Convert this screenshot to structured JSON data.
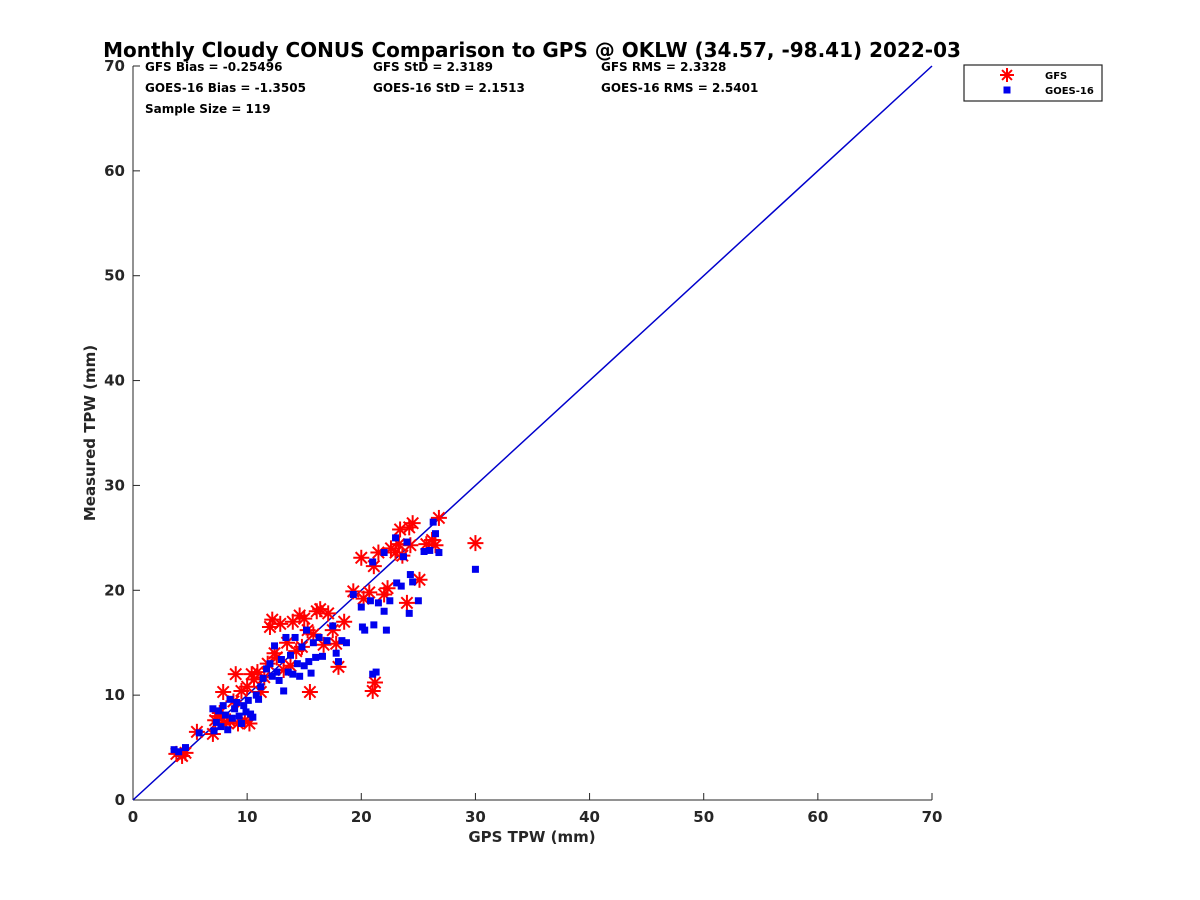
{
  "chart_data": {
    "type": "scatter",
    "title": "Monthly Cloudy CONUS Comparison to GPS @ OKLW (34.57, -98.41) 2022-03",
    "xlabel": "GPS TPW (mm)",
    "ylabel": "Measured TPW (mm)",
    "xlim": [
      0,
      70
    ],
    "ylim": [
      0,
      70
    ],
    "xticks": [
      0,
      10,
      20,
      30,
      40,
      50,
      60,
      70
    ],
    "yticks": [
      0,
      10,
      20,
      30,
      40,
      50,
      60,
      70
    ],
    "grid": false,
    "legend_position": "top-right outside",
    "reference_line": {
      "x": [
        0,
        70
      ],
      "y": [
        0,
        70
      ],
      "color": "#0000cc"
    },
    "stats": {
      "gfs_bias": "GFS Bias = -0.25496",
      "gfs_std": "GFS StD = 2.3189",
      "gfs_rms": "GFS RMS = 2.3328",
      "goes_bias": "GOES-16 Bias = -1.3505",
      "goes_std": "GOES-16 StD = 2.1513",
      "goes_rms": "GOES-16 RMS = 2.5401",
      "sample_size": "Sample Size = 119"
    },
    "series": [
      {
        "name": "GFS",
        "marker": "asterisk",
        "color": "#ff0000",
        "points": [
          [
            3.8,
            4.4
          ],
          [
            4.3,
            4.2
          ],
          [
            4.6,
            4.5
          ],
          [
            5.6,
            6.5
          ],
          [
            7.0,
            6.3
          ],
          [
            7.2,
            7.6
          ],
          [
            7.4,
            8.0
          ],
          [
            7.6,
            8.3
          ],
          [
            7.9,
            10.3
          ],
          [
            8.2,
            7.4
          ],
          [
            8.5,
            7.5
          ],
          [
            8.8,
            9.4
          ],
          [
            9.0,
            12.0
          ],
          [
            9.2,
            7.3
          ],
          [
            9.5,
            10.4
          ],
          [
            9.8,
            7.6
          ],
          [
            10.0,
            10.8
          ],
          [
            10.2,
            7.3
          ],
          [
            10.4,
            12.0
          ],
          [
            10.6,
            11.5
          ],
          [
            10.9,
            12.2
          ],
          [
            11.2,
            10.3
          ],
          [
            11.5,
            11.7
          ],
          [
            11.8,
            13.0
          ],
          [
            12.0,
            16.5
          ],
          [
            12.2,
            17.2
          ],
          [
            12.4,
            14.0
          ],
          [
            12.6,
            13.6
          ],
          [
            12.9,
            16.8
          ],
          [
            13.2,
            12.4
          ],
          [
            13.5,
            15.0
          ],
          [
            13.8,
            12.8
          ],
          [
            14.0,
            17.0
          ],
          [
            14.3,
            14.2
          ],
          [
            14.6,
            17.6
          ],
          [
            14.8,
            14.6
          ],
          [
            15.0,
            17.3
          ],
          [
            15.3,
            16.2
          ],
          [
            15.5,
            10.3
          ],
          [
            15.8,
            15.8
          ],
          [
            16.1,
            18.0
          ],
          [
            16.4,
            18.2
          ],
          [
            16.7,
            14.8
          ],
          [
            17.1,
            17.8
          ],
          [
            17.5,
            16.2
          ],
          [
            17.8,
            14.9
          ],
          [
            18.0,
            12.7
          ],
          [
            18.5,
            17.0
          ],
          [
            19.3,
            19.9
          ],
          [
            20.0,
            23.1
          ],
          [
            20.2,
            19.2
          ],
          [
            20.7,
            19.8
          ],
          [
            21.0,
            10.4
          ],
          [
            21.1,
            22.3
          ],
          [
            21.2,
            11.2
          ],
          [
            21.5,
            23.6
          ],
          [
            22.0,
            19.6
          ],
          [
            22.3,
            20.2
          ],
          [
            22.6,
            24.0
          ],
          [
            23.0,
            23.6
          ],
          [
            23.3,
            24.4
          ],
          [
            23.4,
            25.8
          ],
          [
            23.6,
            23.3
          ],
          [
            24.0,
            18.8
          ],
          [
            24.2,
            26.0
          ],
          [
            24.3,
            24.3
          ],
          [
            24.5,
            26.4
          ],
          [
            25.1,
            21.0
          ],
          [
            25.7,
            24.4
          ],
          [
            26.2,
            24.8
          ],
          [
            26.5,
            24.3
          ],
          [
            26.8,
            26.9
          ],
          [
            30.0,
            24.5
          ]
        ]
      },
      {
        "name": "GOES-16",
        "marker": "square",
        "color": "#0000ee",
        "points": [
          [
            3.6,
            4.8
          ],
          [
            4.0,
            4.6
          ],
          [
            4.6,
            5.0
          ],
          [
            5.8,
            6.4
          ],
          [
            7.0,
            8.7
          ],
          [
            7.1,
            6.6
          ],
          [
            7.3,
            7.4
          ],
          [
            7.5,
            8.5
          ],
          [
            7.7,
            7.0
          ],
          [
            7.9,
            9.0
          ],
          [
            8.1,
            8.1
          ],
          [
            8.3,
            6.7
          ],
          [
            8.5,
            9.6
          ],
          [
            8.7,
            7.8
          ],
          [
            8.9,
            8.7
          ],
          [
            9.1,
            9.3
          ],
          [
            9.3,
            8.0
          ],
          [
            9.5,
            7.3
          ],
          [
            9.7,
            9.0
          ],
          [
            9.9,
            8.4
          ],
          [
            10.1,
            9.5
          ],
          [
            10.3,
            8.2
          ],
          [
            10.5,
            7.9
          ],
          [
            10.8,
            10.0
          ],
          [
            11.0,
            9.6
          ],
          [
            11.2,
            10.8
          ],
          [
            11.4,
            11.6
          ],
          [
            11.7,
            12.5
          ],
          [
            12.0,
            13.0
          ],
          [
            12.2,
            11.8
          ],
          [
            12.4,
            14.7
          ],
          [
            12.6,
            12.2
          ],
          [
            12.8,
            11.4
          ],
          [
            13.0,
            13.4
          ],
          [
            13.2,
            10.4
          ],
          [
            13.4,
            15.5
          ],
          [
            13.6,
            12.2
          ],
          [
            13.8,
            13.8
          ],
          [
            14.0,
            12.0
          ],
          [
            14.2,
            15.5
          ],
          [
            14.4,
            13.0
          ],
          [
            14.6,
            11.8
          ],
          [
            14.8,
            14.6
          ],
          [
            15.0,
            12.8
          ],
          [
            15.2,
            16.2
          ],
          [
            15.4,
            13.2
          ],
          [
            15.6,
            12.1
          ],
          [
            15.8,
            15.0
          ],
          [
            16.0,
            13.6
          ],
          [
            16.3,
            15.5
          ],
          [
            16.6,
            13.7
          ],
          [
            17.0,
            15.2
          ],
          [
            17.5,
            16.6
          ],
          [
            17.8,
            14.0
          ],
          [
            18.0,
            13.2
          ],
          [
            18.3,
            15.2
          ],
          [
            18.7,
            15.0
          ],
          [
            19.3,
            19.6
          ],
          [
            20.0,
            18.4
          ],
          [
            20.1,
            16.5
          ],
          [
            20.3,
            16.2
          ],
          [
            20.8,
            19.0
          ],
          [
            21.0,
            12.0
          ],
          [
            21.0,
            22.7
          ],
          [
            21.1,
            16.7
          ],
          [
            21.3,
            12.2
          ],
          [
            21.5,
            18.8
          ],
          [
            22.0,
            23.6
          ],
          [
            22.0,
            18.0
          ],
          [
            22.2,
            16.2
          ],
          [
            22.5,
            19.0
          ],
          [
            23.0,
            25.0
          ],
          [
            23.1,
            20.7
          ],
          [
            23.5,
            20.4
          ],
          [
            23.7,
            23.2
          ],
          [
            24.0,
            24.6
          ],
          [
            24.2,
            17.8
          ],
          [
            24.3,
            21.5
          ],
          [
            24.5,
            20.8
          ],
          [
            25.0,
            19.0
          ],
          [
            25.5,
            23.7
          ],
          [
            26.0,
            23.8
          ],
          [
            26.3,
            26.5
          ],
          [
            26.5,
            25.4
          ],
          [
            26.8,
            23.6
          ],
          [
            30.0,
            22.0
          ]
        ]
      }
    ]
  }
}
